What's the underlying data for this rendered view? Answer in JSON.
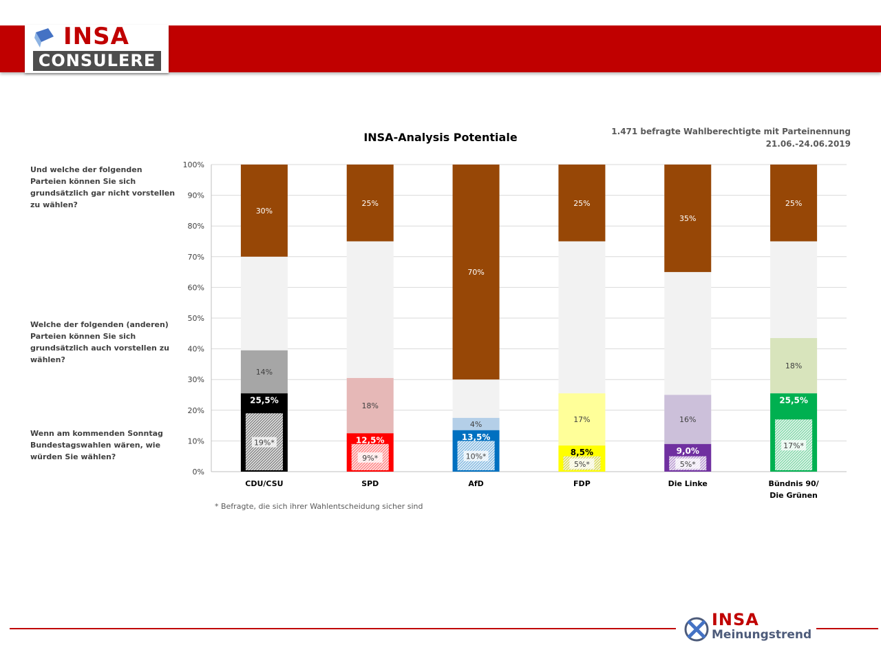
{
  "header": {
    "brand_top": "INSA",
    "brand_bottom": "CONSULERE"
  },
  "footer": {
    "brand_top": "INSA",
    "brand_bottom": "Meinungstrend"
  },
  "questions": [
    "Und welche der folgenden Parteien können Sie sich grundsätzlich gar nicht vorstellen zu wählen?",
    "Welche der folgenden (anderen) Parteien können Sie sich grundsätzlich auch vorstellen zu wählen?",
    "Wenn am kommenden Sonntag Bundestagswahlen wären, wie würden Sie wählen?"
  ],
  "footnote": "* Befragte, die sich ihrer Wahlentscheidung sicher sind",
  "colors": {
    "reject": "#974706",
    "neutral": "#f2f2f2",
    "grid": "#d9d9d9"
  },
  "chart_data": {
    "type": "bar",
    "stacked": true,
    "title": "INSA-Analysis Potentiale",
    "subtitle": [
      "1.471 befragte Wahlberechtigte mit Parteinennung",
      "21.06.-24.06.2019"
    ],
    "ylim": [
      0,
      100
    ],
    "yticks": [
      "0%",
      "10%",
      "20%",
      "30%",
      "40%",
      "50%",
      "60%",
      "70%",
      "80%",
      "90%",
      "100%"
    ],
    "categories": [
      "CDU/CSU",
      "SPD",
      "AfD",
      "FDP",
      "Die Linke",
      "Bündnis 90/ Die Grünen"
    ],
    "category_lines": [
      [
        "CDU/CSU"
      ],
      [
        "SPD"
      ],
      [
        "AfD"
      ],
      [
        "FDP"
      ],
      [
        "Die Linke"
      ],
      [
        "Bündnis 90/",
        "Die Grünen"
      ]
    ],
    "series": [
      {
        "values": [
          25.5,
          12.5,
          13.5,
          8.5,
          9.0,
          25.5
        ],
        "labels": [
          "25,5%",
          "12,5%",
          "13,5%",
          "8,5%",
          "9,0%",
          "25,5%"
        ]
      },
      {
        "values": [
          19,
          9,
          10,
          5,
          5,
          17
        ],
        "labels": [
          "19%*",
          "9%*",
          "10%*",
          "5%*",
          "5%*",
          "17%*"
        ]
      },
      {
        "values": [
          14,
          18,
          4,
          17,
          16,
          18
        ],
        "labels": [
          "14%",
          "18%",
          "4%",
          "17%",
          "16%",
          "18%"
        ]
      },
      {
        "values": [
          30,
          25,
          70,
          25,
          35,
          25
        ],
        "labels": [
          "30%",
          "25%",
          "70%",
          "25%",
          "35%",
          "25%"
        ]
      }
    ],
    "party_colors": {
      "vote": [
        "#000000",
        "#ff0000",
        "#0070c0",
        "#ffff00",
        "#7030a0",
        "#00b050"
      ],
      "potential": [
        "#a6a6a6",
        "#e6b8b7",
        "#b4cfe8",
        "#ffff99",
        "#ccc0da",
        "#d8e4bc"
      ],
      "vote_label": [
        "#ffffff",
        "#ffffff",
        "#ffffff",
        "#000000",
        "#ffffff",
        "#ffffff"
      ],
      "sure_hatch": [
        "#ffffff",
        "#ffffff",
        "#ffffff",
        "#bfbfbf",
        "#ffffff",
        "#ffffff"
      ]
    }
  }
}
